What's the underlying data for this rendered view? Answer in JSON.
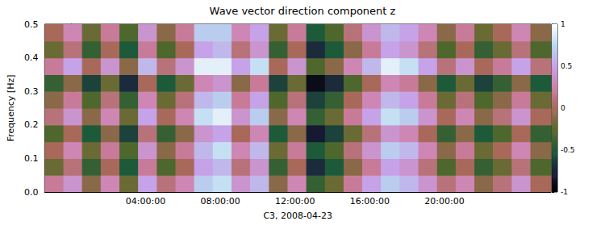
{
  "chart_data": {
    "type": "heatmap",
    "title": "Wave vector direction component z",
    "x_label": "C3, 2008-04-23",
    "y_label": "Frequency [Hz]",
    "xlim": [
      -1.4,
      25.7
    ],
    "xticks": [
      {
        "value": 4,
        "label": "04:00:00"
      },
      {
        "value": 8,
        "label": "08:00:00"
      },
      {
        "value": 12,
        "label": "12:00:00"
      },
      {
        "value": 16,
        "label": "16:00:00"
      },
      {
        "value": 20,
        "label": "20:00:00"
      }
    ],
    "ylim": [
      0,
      0.5
    ],
    "yticks": [
      {
        "value": 0,
        "label": "0.0"
      },
      {
        "value": 0.1,
        "label": "0.1"
      },
      {
        "value": 0.2,
        "label": "0.2"
      },
      {
        "value": 0.3,
        "label": "0.3"
      },
      {
        "value": 0.4,
        "label": "0.4"
      },
      {
        "value": 0.5,
        "label": "0.5"
      }
    ],
    "x_bins": [
      -1.4,
      -0.4,
      0.6,
      1.6,
      2.6,
      3.6,
      4.6,
      5.6,
      6.6,
      7.6,
      8.6,
      9.6,
      10.6,
      11.6,
      12.6,
      13.6,
      14.6,
      15.6,
      16.6,
      17.6,
      18.6,
      19.6,
      20.6,
      21.6,
      22.6,
      23.6,
      24.6,
      25.7
    ],
    "y_bins": [
      0,
      0.05,
      0.1,
      0.15,
      0.2,
      0.25,
      0.3,
      0.35,
      0.4,
      0.45,
      0.5
    ],
    "cells": [
      [
        0.2,
        0.4,
        -0.1,
        0.3,
        -0.2,
        0.5,
        0.1,
        0.3,
        0.7,
        0.8,
        0.4,
        0.6,
        -0.1,
        0.3,
        -0.4,
        -0.2,
        0.2,
        0.5,
        0.7,
        0.6,
        0.4,
        0.1,
        0.3,
        -0.1,
        0.1,
        0.4,
        0.0
      ],
      [
        -0.2,
        0.1,
        -0.4,
        0.0,
        -0.5,
        0.2,
        -0.3,
        0.0,
        0.5,
        0.6,
        0.1,
        0.4,
        -0.4,
        0.0,
        -0.7,
        -0.5,
        -0.1,
        0.2,
        0.5,
        0.4,
        0.1,
        -0.3,
        0.0,
        -0.4,
        -0.2,
        0.1,
        -0.3
      ],
      [
        0.0,
        0.3,
        -0.2,
        0.2,
        -0.3,
        0.4,
        -0.1,
        0.2,
        0.6,
        0.8,
        0.3,
        0.6,
        -0.2,
        0.2,
        -0.5,
        -0.3,
        0.1,
        0.4,
        0.7,
        0.6,
        0.3,
        -0.1,
        0.2,
        -0.2,
        0.0,
        0.3,
        -0.1
      ],
      [
        -0.3,
        0.0,
        -0.5,
        -0.1,
        -0.6,
        0.1,
        -0.4,
        -0.1,
        0.4,
        0.5,
        0.0,
        0.3,
        -0.5,
        -0.1,
        -0.8,
        -0.6,
        -0.2,
        0.1,
        0.4,
        0.3,
        0.0,
        -0.4,
        -0.1,
        -0.5,
        -0.3,
        0.0,
        -0.4
      ],
      [
        0.1,
        0.4,
        -0.1,
        0.3,
        -0.2,
        0.5,
        0.0,
        0.3,
        0.8,
        0.9,
        0.4,
        0.7,
        -0.1,
        0.3,
        -0.4,
        -0.2,
        0.2,
        0.5,
        0.8,
        0.7,
        0.4,
        0.0,
        0.3,
        -0.1,
        0.1,
        0.4,
        0.0
      ],
      [
        -0.1,
        0.2,
        -0.3,
        0.1,
        -0.4,
        0.3,
        -0.2,
        0.1,
        0.6,
        0.7,
        0.2,
        0.5,
        -0.3,
        0.1,
        -0.6,
        -0.4,
        0.0,
        0.3,
        0.6,
        0.5,
        0.2,
        -0.2,
        0.1,
        -0.3,
        -0.1,
        0.2,
        -0.2
      ],
      [
        -0.4,
        -0.1,
        -0.6,
        -0.2,
        -0.7,
        0.0,
        -0.5,
        -0.2,
        0.3,
        0.4,
        -0.1,
        0.2,
        -0.6,
        -0.2,
        -0.9,
        -0.7,
        -0.3,
        0.0,
        0.3,
        0.2,
        -0.1,
        -0.5,
        -0.2,
        -0.6,
        -0.4,
        -0.1,
        -0.5
      ],
      [
        0.2,
        0.5,
        0.0,
        0.4,
        -0.1,
        0.6,
        0.1,
        0.4,
        0.9,
        0.9,
        0.5,
        0.8,
        0.0,
        0.4,
        -0.3,
        -0.1,
        0.3,
        0.6,
        0.9,
        0.8,
        0.5,
        0.1,
        0.4,
        0.0,
        0.2,
        0.5,
        0.1
      ],
      [
        -0.2,
        0.1,
        -0.4,
        0.0,
        -0.5,
        0.2,
        -0.3,
        0.0,
        0.5,
        0.6,
        0.1,
        0.4,
        -0.4,
        0.0,
        -0.7,
        -0.5,
        -0.1,
        0.2,
        0.5,
        0.4,
        0.1,
        -0.3,
        0.0,
        -0.4,
        -0.2,
        0.1,
        -0.3
      ],
      [
        0.0,
        0.3,
        -0.2,
        0.2,
        -0.3,
        0.4,
        -0.1,
        0.2,
        0.7,
        0.7,
        0.3,
        0.5,
        -0.2,
        0.2,
        -0.5,
        -0.3,
        0.1,
        0.4,
        0.6,
        0.5,
        0.3,
        -0.1,
        0.2,
        -0.2,
        0.0,
        0.3,
        -0.1
      ]
    ],
    "colorbar_lim": [
      -1,
      1
    ],
    "colorbar_ticks": [
      -1,
      -0.5,
      0,
      0.5,
      1
    ]
  }
}
